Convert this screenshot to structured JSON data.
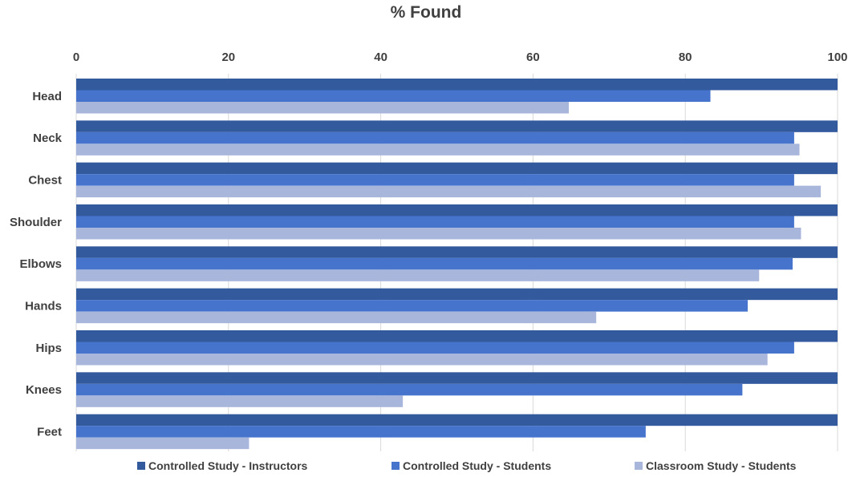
{
  "chart_data": {
    "type": "bar",
    "orientation": "horizontal",
    "title": "% Found",
    "xlabel": "",
    "ylabel": "",
    "xlim": [
      0,
      100
    ],
    "x_ticks": [
      "0",
      "20",
      "40",
      "60",
      "80",
      "100"
    ],
    "x_axis_position": "top",
    "grid": true,
    "legend_position": "bottom",
    "categories": [
      "Head",
      "Neck",
      "Chest",
      "Shoulder",
      "Elbows",
      "Hands",
      "Hips",
      "Knees",
      "Feet"
    ],
    "series": [
      {
        "name": "Controlled Study - Instructors",
        "color": "#345A9E",
        "values": [
          100,
          100,
          100,
          100,
          100,
          100,
          100,
          100,
          100
        ]
      },
      {
        "name": "Controlled Study - Students",
        "color": "#4674CC",
        "values": [
          83.3,
          94.3,
          94.3,
          94.3,
          94.1,
          88.2,
          94.3,
          87.5,
          74.8
        ]
      },
      {
        "name": "Classroom Study - Students",
        "color": "#A9B6DC",
        "values": [
          64.7,
          95.0,
          97.8,
          95.2,
          89.7,
          68.3,
          90.8,
          42.9,
          22.7
        ]
      }
    ]
  }
}
